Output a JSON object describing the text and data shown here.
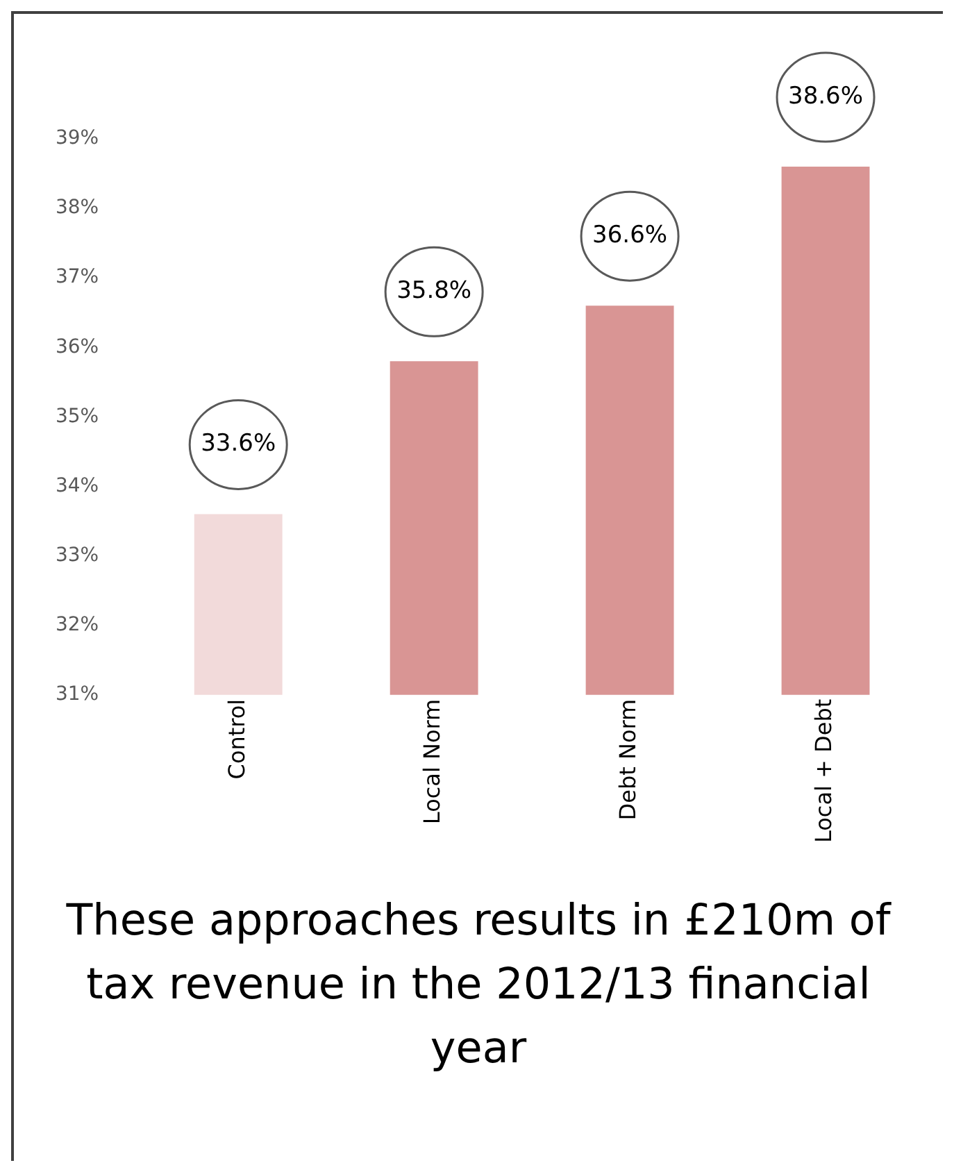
{
  "chart_data": {
    "type": "bar",
    "title": "These approaches results in £210m of tax revenue in the 2012/13 financial year",
    "categories": [
      "Control",
      "Local Norm",
      "Debt Norm",
      "Local + Debt"
    ],
    "values": [
      33.6,
      35.8,
      36.6,
      38.6
    ],
    "colors": [
      "#f2dada",
      "#d99594",
      "#d99594",
      "#d99594"
    ],
    "value_labels": [
      "33.6%",
      "35.8%",
      "36.6%",
      "38.6%"
    ],
    "ylim": [
      31,
      39
    ],
    "yticks": [
      {
        "value": 31,
        "label": "31%"
      },
      {
        "value": 32,
        "label": "32%"
      },
      {
        "value": 33,
        "label": "33%"
      },
      {
        "value": 34,
        "label": "34%"
      },
      {
        "value": 35,
        "label": "35%"
      },
      {
        "value": 36,
        "label": "36%"
      },
      {
        "value": 37,
        "label": "37%"
      },
      {
        "value": 38,
        "label": "38%"
      },
      {
        "value": 39,
        "label": "39%"
      }
    ],
    "grid": false,
    "legend": false
  }
}
